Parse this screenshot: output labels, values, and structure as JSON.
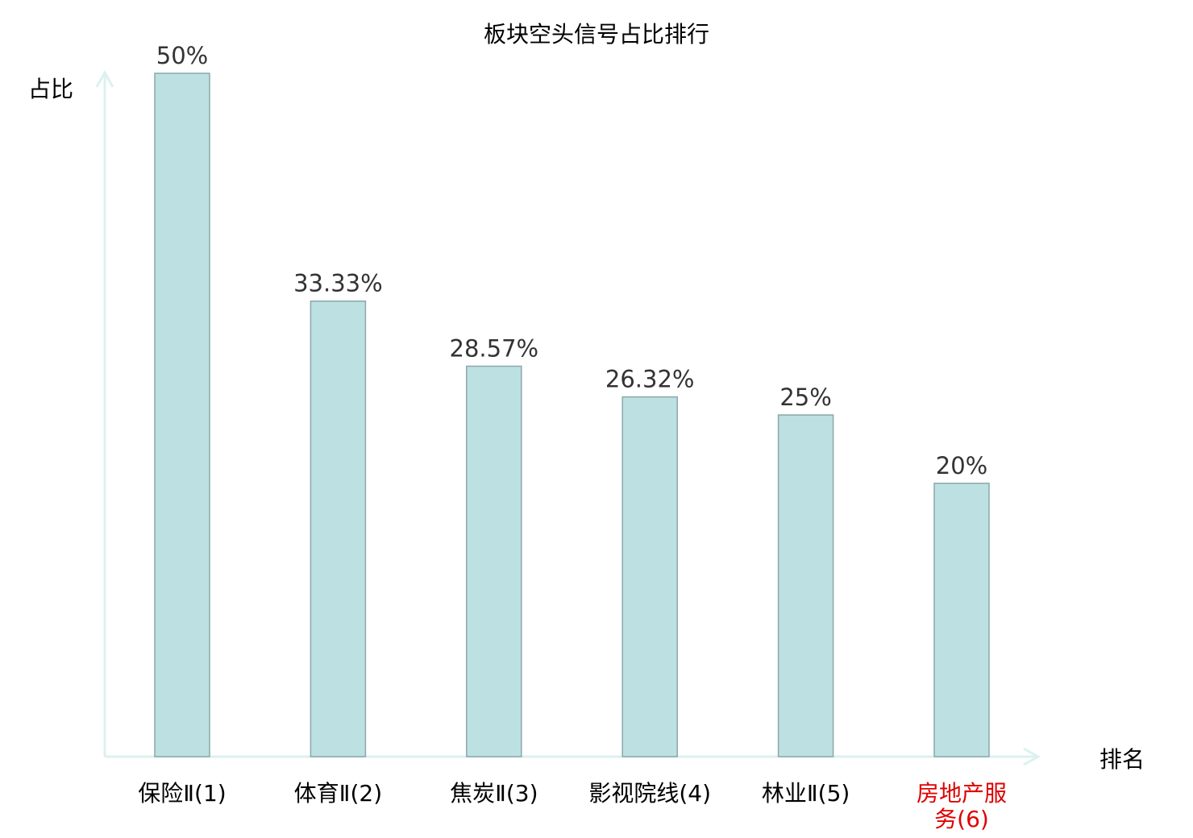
{
  "chart_data": {
    "type": "bar",
    "title": "板块空头信号占比排行",
    "xlabel": "排名",
    "ylabel": "占比",
    "categories": [
      "保险Ⅱ(1)",
      "体育Ⅱ(2)",
      "焦炭Ⅱ(3)",
      "影视院线(4)",
      "林业Ⅱ(5)",
      "房地产服务(6)"
    ],
    "category_lines": [
      [
        "保险Ⅱ(1)"
      ],
      [
        "体育Ⅱ(2)"
      ],
      [
        "焦炭Ⅱ(3)"
      ],
      [
        "影视院线(4)"
      ],
      [
        "林业Ⅱ(5)"
      ],
      [
        "房地产服",
        "务(6)"
      ]
    ],
    "category_colors": [
      "#000000",
      "#000000",
      "#000000",
      "#000000",
      "#000000",
      "#e00000"
    ],
    "values": [
      50,
      33.33,
      28.57,
      26.32,
      25,
      20
    ],
    "data_labels": [
      "50%",
      "33.33%",
      "28.57%",
      "26.32%",
      "25%",
      "20%"
    ],
    "ylim": [
      0,
      50
    ],
    "grid": false,
    "colors": {
      "bar_fill": "#bde0e3",
      "bar_stroke": "#8aa8aa",
      "axis": "#dcf1ef",
      "label": "#333333"
    }
  }
}
